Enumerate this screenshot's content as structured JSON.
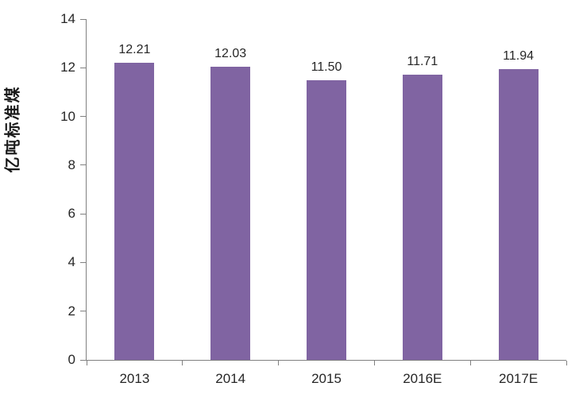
{
  "chart_data": {
    "type": "bar",
    "title": "",
    "xlabel": "",
    "ylabel": "亿吨标准煤",
    "categories": [
      "2013",
      "2014",
      "2015",
      "2016E",
      "2017E"
    ],
    "values": [
      12.21,
      12.03,
      11.5,
      11.71,
      11.94
    ],
    "value_labels": [
      "12.21",
      "12.03",
      "11.50",
      "11.71",
      "11.94"
    ],
    "ylim": [
      0,
      14
    ],
    "yticks": [
      0,
      2,
      4,
      6,
      8,
      10,
      12,
      14
    ],
    "grid": false,
    "legend_position": "none",
    "colors": {
      "bar": "#8064A2",
      "axis": "#808080",
      "tick_label": "#262626",
      "axis_title": "#1a1a1a",
      "background": "#ffffff"
    }
  }
}
